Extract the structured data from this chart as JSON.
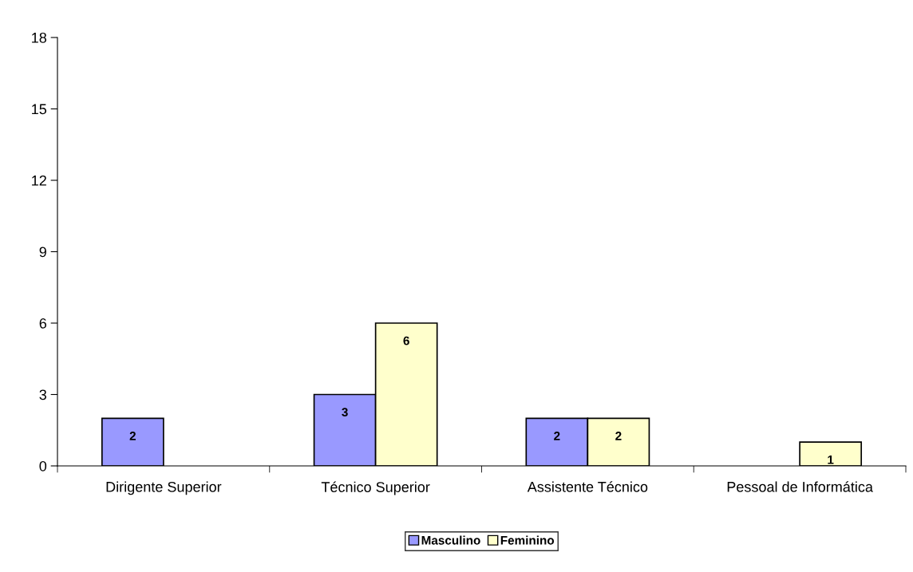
{
  "chart_data": {
    "type": "bar",
    "categories": [
      "Dirigente Superior",
      "Técnico Superior",
      "Assistente Técnico",
      "Pessoal de Informática"
    ],
    "series": [
      {
        "name": "Masculino",
        "color": "#9999ff",
        "values": [
          2,
          3,
          2,
          null
        ]
      },
      {
        "name": "Feminino",
        "color": "#ffffcc",
        "values": [
          null,
          6,
          2,
          1
        ]
      }
    ],
    "ylim": [
      0,
      18
    ],
    "yticks": [
      0,
      3,
      6,
      9,
      12,
      15,
      18
    ],
    "grid": false,
    "legend": "bottom",
    "data_labels": true
  }
}
